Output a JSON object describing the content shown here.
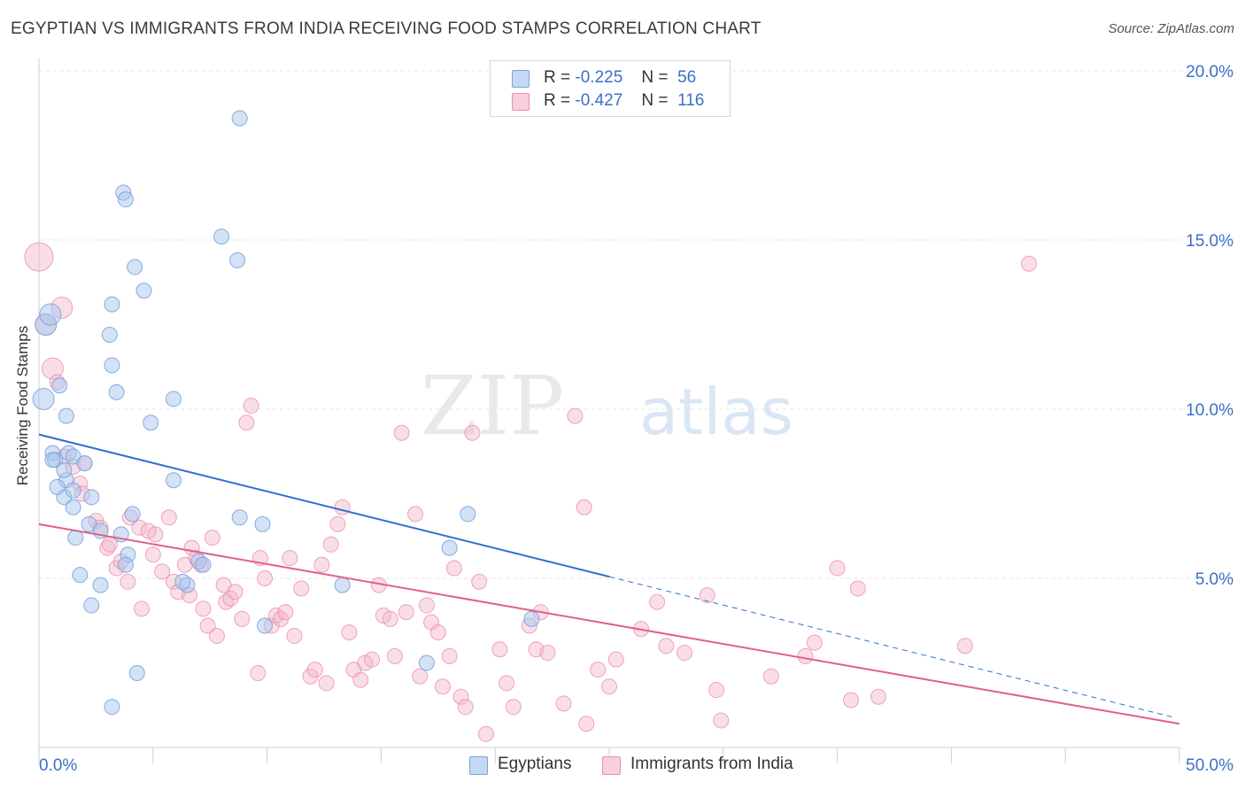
{
  "header": {
    "title": "EGYPTIAN VS IMMIGRANTS FROM INDIA RECEIVING FOOD STAMPS CORRELATION CHART",
    "source": "Source: ZipAtlas.com"
  },
  "legend": {
    "egyptians": {
      "r_label": "R =",
      "r_value": "-0.225",
      "n_label": "N =",
      "n_value": "56"
    },
    "india": {
      "r_label": "R =",
      "r_value": "-0.427",
      "n_label": "N =",
      "n_value": "116"
    }
  },
  "bottom_legend": {
    "egyptians": "Egyptians",
    "india": "Immigrants from India"
  },
  "colors": {
    "blue_fill": "#a9c6ee",
    "blue_stroke": "#7aa3dd",
    "blue_line": "#2f6fd0",
    "pink_fill": "#f5b6c9",
    "pink_stroke": "#eb8fab",
    "pink_line": "#e0608c",
    "tick_label": "#3d6fc6",
    "grid": "#e6e6e6"
  },
  "chart_data": {
    "type": "scatter",
    "title": "EGYPTIAN VS IMMIGRANTS FROM INDIA RECEIVING FOOD STAMPS CORRELATION CHART",
    "xlabel": "",
    "ylabel": "Receiving Food Stamps",
    "xlim": [
      0,
      50
    ],
    "ylim": [
      0,
      20
    ],
    "x_tick_labels": [
      "0.0%",
      "50.0%"
    ],
    "y_ticks": [
      5,
      10,
      15,
      20
    ],
    "y_tick_labels": [
      "5.0%",
      "10.0%",
      "15.0%",
      "20.0%"
    ],
    "grid": true,
    "watermark": "ZIPatlas",
    "series": [
      {
        "name": "Egyptians",
        "color": "blue",
        "trend": {
          "x_start": 0,
          "y_start": 9.25,
          "x_solid_end": 25,
          "x_end": 49.7,
          "y_end": 0.9
        },
        "points": [
          [
            0.2,
            10.3
          ],
          [
            0.3,
            12.5
          ],
          [
            0.5,
            12.8
          ],
          [
            0.9,
            10.7
          ],
          [
            1.2,
            9.8
          ],
          [
            0.6,
            8.7
          ],
          [
            0.7,
            8.5
          ],
          [
            1.3,
            8.7
          ],
          [
            1.5,
            8.6
          ],
          [
            2.0,
            8.4
          ],
          [
            1.1,
            7.4
          ],
          [
            1.2,
            7.9
          ],
          [
            0.8,
            7.7
          ],
          [
            1.5,
            7.6
          ],
          [
            1.5,
            7.1
          ],
          [
            2.3,
            7.4
          ],
          [
            1.6,
            6.2
          ],
          [
            2.2,
            6.6
          ],
          [
            2.7,
            6.4
          ],
          [
            3.6,
            6.3
          ],
          [
            4.1,
            6.9
          ],
          [
            3.9,
            5.7
          ],
          [
            3.8,
            5.4
          ],
          [
            1.8,
            5.1
          ],
          [
            2.7,
            4.8
          ],
          [
            2.3,
            4.2
          ],
          [
            3.2,
            1.2
          ],
          [
            4.3,
            2.2
          ],
          [
            3.7,
            16.4
          ],
          [
            3.8,
            16.2
          ],
          [
            4.2,
            14.2
          ],
          [
            4.6,
            13.5
          ],
          [
            3.2,
            13.1
          ],
          [
            3.1,
            12.2
          ],
          [
            3.2,
            11.3
          ],
          [
            3.4,
            10.5
          ],
          [
            4.9,
            9.6
          ],
          [
            5.9,
            10.3
          ],
          [
            5.9,
            7.9
          ],
          [
            6.5,
            4.8
          ],
          [
            7.0,
            5.5
          ],
          [
            7.2,
            5.4
          ],
          [
            8.0,
            15.1
          ],
          [
            8.7,
            14.4
          ],
          [
            8.8,
            18.6
          ],
          [
            8.8,
            6.8
          ],
          [
            9.8,
            6.6
          ],
          [
            9.9,
            3.6
          ],
          [
            13.3,
            4.8
          ],
          [
            17.0,
            2.5
          ],
          [
            18.0,
            5.9
          ],
          [
            18.8,
            6.9
          ],
          [
            21.6,
            3.8
          ],
          [
            0.6,
            8.5
          ],
          [
            1.1,
            8.2
          ],
          [
            6.3,
            4.9
          ]
        ]
      },
      {
        "name": "Immigrants from India",
        "color": "pink",
        "trend": {
          "x_start": 0,
          "y_start": 6.6,
          "x_end": 50,
          "y_end": 0.7
        },
        "points": [
          [
            0.0,
            14.5
          ],
          [
            0.3,
            12.5
          ],
          [
            1.0,
            13.0
          ],
          [
            0.6,
            11.2
          ],
          [
            0.8,
            10.8
          ],
          [
            1.1,
            8.6
          ],
          [
            1.5,
            8.3
          ],
          [
            2.0,
            8.4
          ],
          [
            1.8,
            7.8
          ],
          [
            1.9,
            7.5
          ],
          [
            2.5,
            6.7
          ],
          [
            2.7,
            6.5
          ],
          [
            3.0,
            5.9
          ],
          [
            3.1,
            6.0
          ],
          [
            3.4,
            5.3
          ],
          [
            3.6,
            5.5
          ],
          [
            3.9,
            4.9
          ],
          [
            4.0,
            6.8
          ],
          [
            4.4,
            6.5
          ],
          [
            4.5,
            4.1
          ],
          [
            4.8,
            6.4
          ],
          [
            5.1,
            6.3
          ],
          [
            5.0,
            5.7
          ],
          [
            5.4,
            5.2
          ],
          [
            5.7,
            6.8
          ],
          [
            5.9,
            4.9
          ],
          [
            6.1,
            4.6
          ],
          [
            6.4,
            5.4
          ],
          [
            6.6,
            4.5
          ],
          [
            6.7,
            5.9
          ],
          [
            6.9,
            5.6
          ],
          [
            7.1,
            5.4
          ],
          [
            7.2,
            4.1
          ],
          [
            7.4,
            3.6
          ],
          [
            7.6,
            6.2
          ],
          [
            7.8,
            3.3
          ],
          [
            8.1,
            4.8
          ],
          [
            8.2,
            4.3
          ],
          [
            8.4,
            4.4
          ],
          [
            8.6,
            4.6
          ],
          [
            8.9,
            3.8
          ],
          [
            9.1,
            9.6
          ],
          [
            9.3,
            10.1
          ],
          [
            9.7,
            5.6
          ],
          [
            9.6,
            2.2
          ],
          [
            9.9,
            5.0
          ],
          [
            10.2,
            3.6
          ],
          [
            10.4,
            3.9
          ],
          [
            10.6,
            3.8
          ],
          [
            10.8,
            4.0
          ],
          [
            11.0,
            5.6
          ],
          [
            11.2,
            3.3
          ],
          [
            11.5,
            4.7
          ],
          [
            11.9,
            2.1
          ],
          [
            12.1,
            2.3
          ],
          [
            12.4,
            5.4
          ],
          [
            12.6,
            1.9
          ],
          [
            12.8,
            6.0
          ],
          [
            13.1,
            6.6
          ],
          [
            13.3,
            7.1
          ],
          [
            13.6,
            3.4
          ],
          [
            13.8,
            2.3
          ],
          [
            14.1,
            2.0
          ],
          [
            14.3,
            2.5
          ],
          [
            14.6,
            2.6
          ],
          [
            14.9,
            4.8
          ],
          [
            15.1,
            3.9
          ],
          [
            15.4,
            3.8
          ],
          [
            15.6,
            2.7
          ],
          [
            15.9,
            9.3
          ],
          [
            16.1,
            4.0
          ],
          [
            16.5,
            6.9
          ],
          [
            16.7,
            2.1
          ],
          [
            17.0,
            4.2
          ],
          [
            17.2,
            3.7
          ],
          [
            17.5,
            3.4
          ],
          [
            17.7,
            1.8
          ],
          [
            18.0,
            2.7
          ],
          [
            18.2,
            5.3
          ],
          [
            18.5,
            1.5
          ],
          [
            18.7,
            1.2
          ],
          [
            19.0,
            9.3
          ],
          [
            19.3,
            4.9
          ],
          [
            19.6,
            0.4
          ],
          [
            20.2,
            2.9
          ],
          [
            20.5,
            1.9
          ],
          [
            20.8,
            1.2
          ],
          [
            21.5,
            3.6
          ],
          [
            21.8,
            2.9
          ],
          [
            22.0,
            4.0
          ],
          [
            22.3,
            2.8
          ],
          [
            23.0,
            1.3
          ],
          [
            23.5,
            9.8
          ],
          [
            23.9,
            7.1
          ],
          [
            24.0,
            0.7
          ],
          [
            24.5,
            2.3
          ],
          [
            25.0,
            1.8
          ],
          [
            25.3,
            2.6
          ],
          [
            26.4,
            3.5
          ],
          [
            27.1,
            4.3
          ],
          [
            28.3,
            2.8
          ],
          [
            29.3,
            4.5
          ],
          [
            29.7,
            1.7
          ],
          [
            29.9,
            0.8
          ],
          [
            32.1,
            2.1
          ],
          [
            33.6,
            2.7
          ],
          [
            34.0,
            3.1
          ],
          [
            35.0,
            5.3
          ],
          [
            35.6,
            1.4
          ],
          [
            35.9,
            4.7
          ],
          [
            36.8,
            1.5
          ],
          [
            40.6,
            3.0
          ],
          [
            43.4,
            14.3
          ],
          [
            27.5,
            3.0
          ]
        ]
      }
    ]
  }
}
